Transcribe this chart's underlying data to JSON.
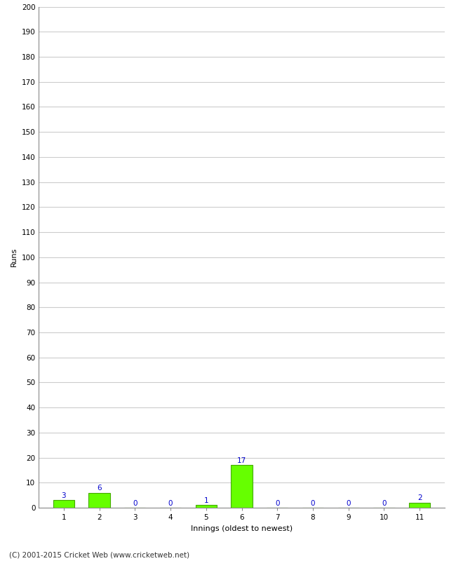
{
  "xlabel": "Innings (oldest to newest)",
  "ylabel": "Runs",
  "categories": [
    1,
    2,
    3,
    4,
    5,
    6,
    7,
    8,
    9,
    10,
    11
  ],
  "values": [
    3,
    6,
    0,
    0,
    1,
    17,
    0,
    0,
    0,
    0,
    2
  ],
  "bar_color": "#66ff00",
  "bar_edge_color": "#44aa00",
  "label_color": "#0000cc",
  "ylim": [
    0,
    200
  ],
  "yticks": [
    0,
    10,
    20,
    30,
    40,
    50,
    60,
    70,
    80,
    90,
    100,
    110,
    120,
    130,
    140,
    150,
    160,
    170,
    180,
    190,
    200
  ],
  "footnote": "(C) 2001-2015 Cricket Web (www.cricketweb.net)",
  "background_color": "#ffffff",
  "grid_color": "#cccccc",
  "label_color_blue": "#0000cc",
  "spine_color": "#888888",
  "label_fontsize": 7.5,
  "axis_label_fontsize": 8,
  "tick_fontsize": 7.5,
  "footnote_fontsize": 7.5
}
